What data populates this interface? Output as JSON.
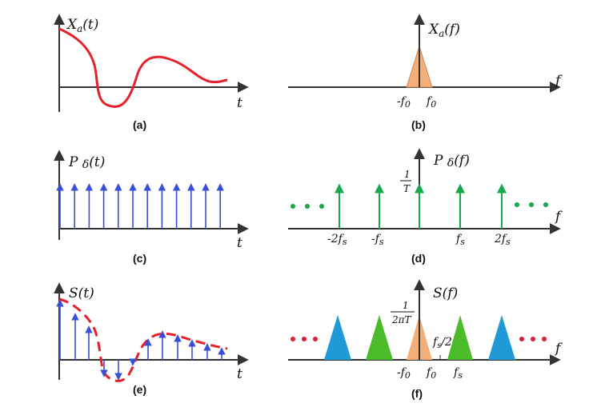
{
  "panels": {
    "a": {
      "ylabel": "X",
      "ylabel_sub": "a",
      "ylabel_arg": "(t)",
      "xlabel": "t",
      "caption": "(a)"
    },
    "b": {
      "ylabel": "X",
      "ylabel_sub": "a",
      "ylabel_arg": "(f)",
      "xlabel": "f",
      "caption": "(b)",
      "ticks": [
        {
          "text": "-f",
          "sub": "0"
        },
        {
          "text": "f",
          "sub": "0"
        }
      ]
    },
    "c": {
      "ylabel": "P ",
      "ylabel_sym": "δ",
      "ylabel_arg": "(t)",
      "xlabel": "t",
      "caption": "(c)"
    },
    "d": {
      "ylabel": "P ",
      "ylabel_sym": "δ",
      "ylabel_arg": "(f)",
      "xlabel": "f",
      "caption": "(d)",
      "amp_num": "1",
      "amp_den": "T",
      "ticks": [
        {
          "text": "-2f",
          "sub": "s"
        },
        {
          "text": "-f",
          "sub": "s"
        },
        {
          "text": "f",
          "sub": "s"
        },
        {
          "text": "2f",
          "sub": "s"
        }
      ]
    },
    "e": {
      "ylabel": "S(t)",
      "xlabel": "t",
      "caption": "(e)"
    },
    "f": {
      "ylabel": "S(f)",
      "xlabel": "f",
      "caption": "(f)",
      "amp_num": "1",
      "amp_den": "2πT",
      "half_label": "f",
      "half_sub": "s",
      "half_rest": "/2",
      "ticks": [
        {
          "text": "-f",
          "sub": "0"
        },
        {
          "text": "f",
          "sub": "0"
        },
        {
          "text": "f",
          "sub": "s"
        }
      ]
    }
  },
  "colors": {
    "signal": "#e8202a",
    "impulse_time": "#3a4fd8",
    "impulse_freq": "#17a84a",
    "spectrum_base": "#f5b07a",
    "spectrum_shift1": "#4cbb2a",
    "spectrum_shift2": "#1f9ad6",
    "dots_green": "#1aa64a",
    "dots_red": "#d8202a"
  }
}
